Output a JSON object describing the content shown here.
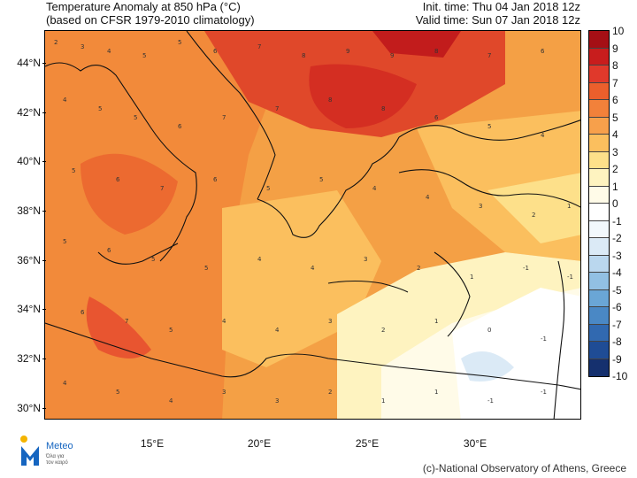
{
  "header": {
    "title_line1": "Temperature Anomaly at 850 hPa (°C)",
    "title_line2": "(based on CFSR 1979-2010 climatology)",
    "init_time": "Init. time: Thu 04 Jan 2018 12z",
    "valid_time": "Valid time: Sun 07 Jan 2018 12z"
  },
  "axes": {
    "lat_labels": [
      "44°N",
      "42°N",
      "40°N",
      "38°N",
      "36°N",
      "34°N",
      "32°N",
      "30°N"
    ],
    "lon_labels": [
      "15°E",
      "20°E",
      "25°E",
      "30°E"
    ]
  },
  "colorbar": {
    "labels": [
      "10",
      "9",
      "8",
      "7",
      "6",
      "5",
      "4",
      "3",
      "2",
      "1",
      "0",
      "-1",
      "-2",
      "-3",
      "-4",
      "-5",
      "-6",
      "-7",
      "-8",
      "-9",
      "-10"
    ],
    "colors": [
      "#a50f15",
      "#c81d1d",
      "#e0392b",
      "#ec5f2c",
      "#f2813a",
      "#f7a04b",
      "#fbbf5e",
      "#fde08a",
      "#fef3c0",
      "#fffbe8",
      "#ffffff",
      "#f2f8fc",
      "#dbeaf6",
      "#bad7ee",
      "#92c0e3",
      "#6aa6d6",
      "#4a88c5",
      "#3169b0",
      "#1f4c95",
      "#15306e"
    ]
  },
  "logo": {
    "brand": "Meteo",
    "tagline_1": "Όλα για",
    "tagline_2": "τον καιρό"
  },
  "footer": {
    "credit": "(c)-National Observatory of Athens, Greece"
  }
}
